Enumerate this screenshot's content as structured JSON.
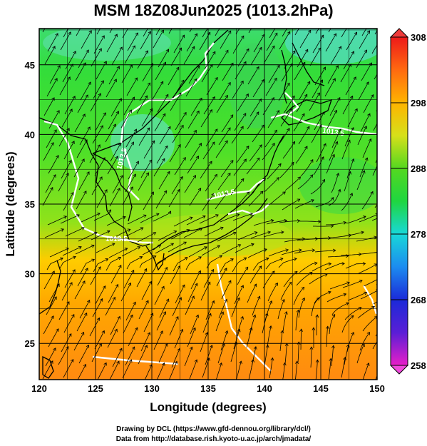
{
  "title": "MSM 18Z08Jun2025 (1013.2hPa)",
  "x_axis": {
    "title": "Longitude (degrees)",
    "range": [
      120,
      150
    ],
    "ticks": [
      "120",
      "125",
      "130",
      "135",
      "140",
      "145",
      "150"
    ]
  },
  "y_axis": {
    "title": "Latitude  (degrees)",
    "range": [
      22.4,
      47.6
    ],
    "ticks": [
      "25",
      "30",
      "35",
      "40",
      "45"
    ]
  },
  "colorbar": {
    "range": [
      258,
      308
    ],
    "ticks": [
      "258",
      "268",
      "278",
      "288",
      "298",
      "308"
    ]
  },
  "isobar_labels": [
    "1013.5",
    "1013.5",
    "1013.5",
    "1013.5"
  ],
  "colors": {
    "cool": "#22dd22",
    "warm": "#ff9900",
    "isobar": "#ffffff"
  },
  "credits": [
    "Drawing by DCL (https://www.gfd-dennou.org/library/dcl/)",
    "Data from http://database.rish.kyoto-u.ac.jp/arch/jmadata/"
  ]
}
